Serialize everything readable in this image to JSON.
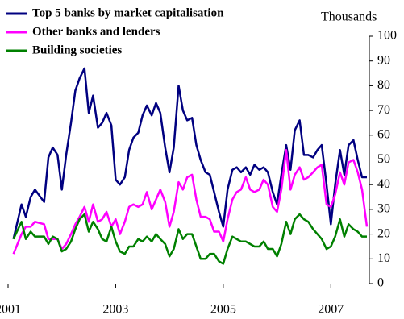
{
  "chart_data": {
    "type": "line",
    "y_axis_label": "Thousands",
    "x": [
      2001.1,
      2001.25,
      2001.33,
      2001.42,
      2001.5,
      2001.67,
      2001.75,
      2001.83,
      2001.92,
      2002.0,
      2002.08,
      2002.17,
      2002.25,
      2002.33,
      2002.42,
      2002.5,
      2002.58,
      2002.67,
      2002.75,
      2002.83,
      2002.92,
      2003.0,
      2003.08,
      2003.17,
      2003.25,
      2003.33,
      2003.42,
      2003.5,
      2003.58,
      2003.67,
      2003.75,
      2003.83,
      2003.92,
      2004.0,
      2004.08,
      2004.17,
      2004.25,
      2004.33,
      2004.42,
      2004.5,
      2004.58,
      2004.67,
      2004.75,
      2004.83,
      2004.92,
      2005.0,
      2005.08,
      2005.17,
      2005.25,
      2005.33,
      2005.42,
      2005.5,
      2005.58,
      2005.67,
      2005.75,
      2005.83,
      2005.92,
      2006.0,
      2006.08,
      2006.17,
      2006.25,
      2006.33,
      2006.42,
      2006.5,
      2006.58,
      2006.67,
      2006.75,
      2006.83,
      2006.92,
      2007.0,
      2007.08,
      2007.17,
      2007.25,
      2007.33,
      2007.42,
      2007.5,
      2007.58,
      2007.67
    ],
    "series": [
      {
        "name": "Top 5 banks by market capitalisation",
        "color": "#000080",
        "values": [
          18,
          32,
          27,
          35,
          38,
          33,
          51,
          55,
          52,
          38,
          52,
          65,
          78,
          83,
          87,
          69,
          76,
          63,
          65,
          69,
          64,
          42,
          40,
          43,
          54,
          59,
          61,
          68,
          72,
          68,
          73,
          69,
          55,
          45,
          55,
          80,
          70,
          66,
          67,
          56,
          50,
          45,
          44,
          37,
          29,
          23,
          38,
          46,
          47,
          45,
          47,
          44,
          48,
          46,
          47,
          45,
          37,
          32,
          44,
          56,
          46,
          62,
          66,
          52,
          52,
          51,
          54,
          56,
          40,
          24,
          40,
          54,
          44,
          56,
          58,
          50,
          43,
          43
        ]
      },
      {
        "name": "Other banks and lenders",
        "color": "#ff00ff",
        "values": [
          12,
          20,
          23,
          23,
          25,
          24,
          18,
          18,
          18,
          14,
          16,
          20,
          24,
          27,
          31,
          25,
          32,
          25,
          26,
          29,
          23,
          26,
          20,
          25,
          31,
          32,
          31,
          32,
          37,
          30,
          34,
          38,
          33,
          23,
          29,
          41,
          38,
          43,
          44,
          34,
          27,
          27,
          26,
          21,
          21,
          17,
          26,
          34,
          37,
          38,
          43,
          38,
          37,
          38,
          42,
          40,
          31,
          29,
          38,
          54,
          38,
          44,
          47,
          42,
          43,
          45,
          47,
          48,
          32,
          31,
          36,
          45,
          40,
          49,
          50,
          45,
          38,
          23
        ]
      },
      {
        "name": "Building societies",
        "color": "#008000",
        "values": [
          18,
          25,
          18,
          21,
          19,
          19,
          16,
          19,
          18,
          13,
          14,
          17,
          22,
          26,
          28,
          21,
          25,
          22,
          18,
          17,
          23,
          17,
          13,
          12,
          15,
          15,
          18,
          17,
          19,
          17,
          20,
          18,
          16,
          11,
          14,
          22,
          18,
          20,
          20,
          15,
          10,
          10,
          12,
          12,
          9,
          8,
          14,
          19,
          18,
          17,
          17,
          16,
          15,
          15,
          17,
          14,
          14,
          11,
          16,
          25,
          20,
          26,
          28,
          26,
          25,
          22,
          20,
          18,
          14,
          15,
          19,
          26,
          19,
          24,
          22,
          21,
          19,
          19
        ]
      }
    ],
    "xlim": [
      2001,
      2007.67
    ],
    "xticks": [
      2001,
      2003,
      2005,
      2007
    ],
    "ylim": [
      0,
      100
    ],
    "yticks": [
      0,
      10,
      20,
      30,
      40,
      50,
      60,
      70,
      80,
      90,
      100
    ]
  }
}
